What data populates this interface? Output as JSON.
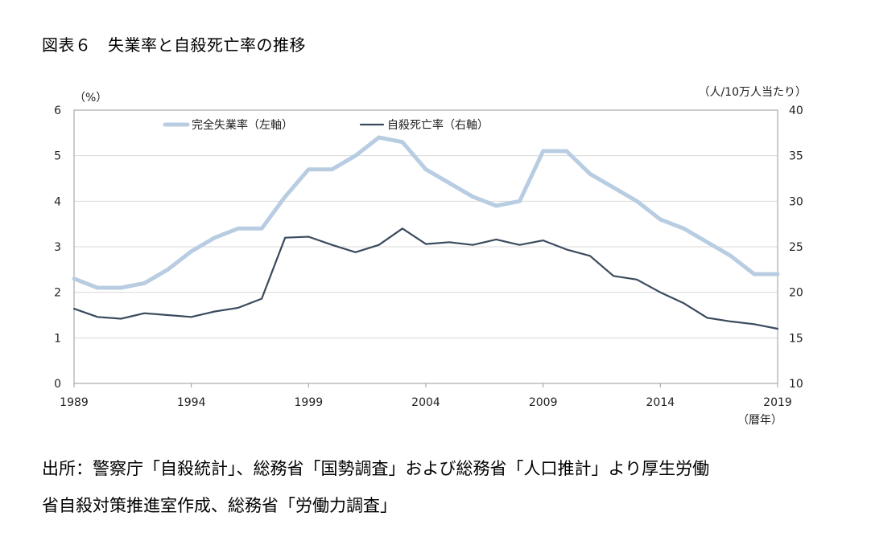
{
  "figure": {
    "title": "図表６　失業率と自殺死亡率の推移",
    "source_line1": "出所：警察庁「自殺統計」、総務省「国勢調査」および総務省「人口推計」より厚生労働",
    "source_line2": "省自殺対策推進室作成、総務省「労働力調査」"
  },
  "chart_data": {
    "type": "line",
    "x": [
      1989,
      1990,
      1991,
      1992,
      1993,
      1994,
      1995,
      1996,
      1997,
      1998,
      1999,
      2000,
      2001,
      2002,
      2003,
      2004,
      2005,
      2006,
      2007,
      2008,
      2009,
      2010,
      2011,
      2012,
      2013,
      2014,
      2015,
      2016,
      2017,
      2018,
      2019
    ],
    "x_tick_labels": [
      "1989",
      "1994",
      "1999",
      "2004",
      "2009",
      "2014",
      "2019"
    ],
    "x_tick_values": [
      1989,
      1994,
      1999,
      2004,
      2009,
      2014,
      2019
    ],
    "xlim": [
      1989,
      2019
    ],
    "xlabel": "（暦年）",
    "y_left": {
      "label": "（%）",
      "lim": [
        0,
        6
      ],
      "ticks": [
        "0",
        "1",
        "2",
        "3",
        "4",
        "5",
        "6"
      ]
    },
    "y_right": {
      "label": "（人/10万人当たり）",
      "lim": [
        10,
        40
      ],
      "ticks": [
        "10",
        "15",
        "20",
        "25",
        "30",
        "35",
        "40"
      ]
    },
    "grid": true,
    "legend_position": "top-center",
    "series": [
      {
        "name": "完全失業率（左軸）",
        "axis": "left",
        "color": "#b8cde2",
        "values": [
          2.3,
          2.1,
          2.1,
          2.2,
          2.5,
          2.9,
          3.2,
          3.4,
          3.4,
          4.1,
          4.7,
          4.7,
          5.0,
          5.4,
          5.3,
          4.7,
          4.4,
          4.1,
          3.9,
          4.0,
          5.1,
          5.1,
          4.6,
          4.3,
          4.0,
          3.6,
          3.4,
          3.1,
          2.8,
          2.4,
          2.4
        ]
      },
      {
        "name": "自殺死亡率（右軸）",
        "axis": "right",
        "color": "#3b4a5e",
        "values": [
          18.2,
          17.3,
          17.1,
          17.7,
          17.5,
          17.3,
          17.9,
          18.3,
          19.3,
          26.0,
          26.1,
          25.2,
          24.4,
          25.2,
          27.0,
          25.3,
          25.5,
          25.2,
          25.8,
          25.2,
          25.7,
          24.7,
          24.0,
          21.8,
          21.4,
          20.0,
          18.8,
          17.2,
          16.8,
          16.5,
          16.0
        ]
      }
    ]
  },
  "colors": {
    "unemployment": "#b8cde2",
    "suicide": "#3b4a5e",
    "grid": "#d9d9d9",
    "frame": "#9a9a9a"
  }
}
